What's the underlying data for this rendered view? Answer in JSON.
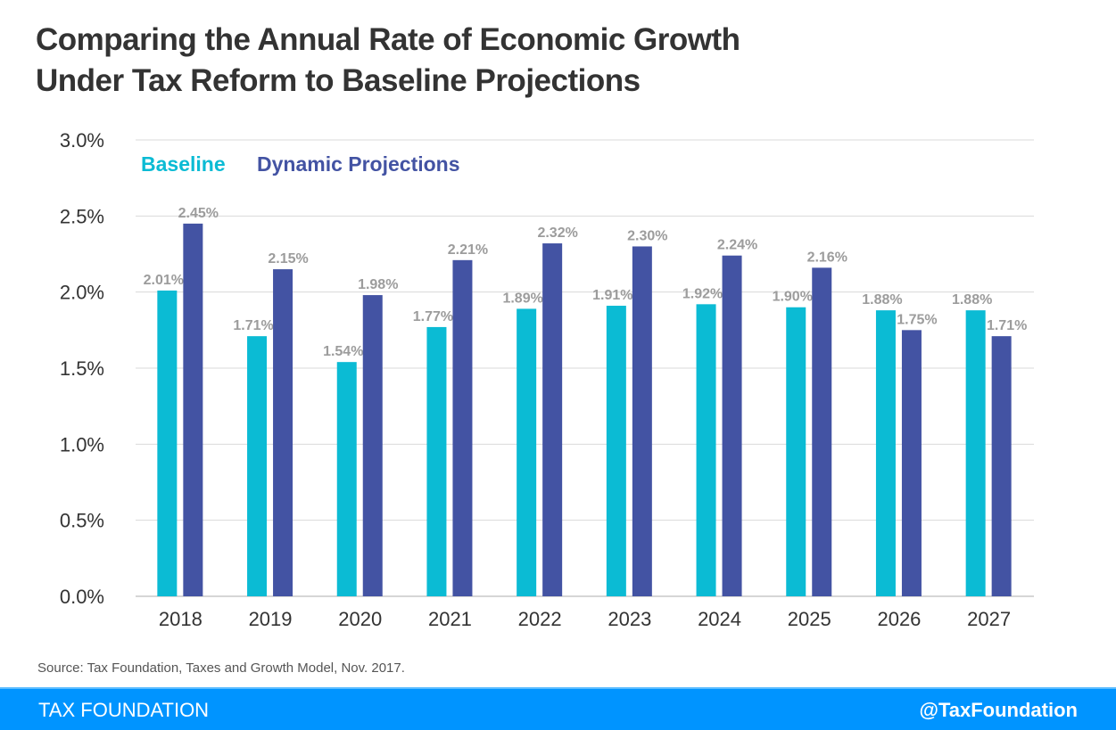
{
  "chart_data": {
    "type": "bar",
    "title": "Comparing the Annual Rate of Economic Growth Under Tax Reform to Baseline Projections",
    "title_lines": [
      "Comparing the Annual Rate of Economic Growth",
      "Under Tax Reform to Baseline Projections"
    ],
    "xlabel": "",
    "ylabel": "",
    "ylim": [
      0,
      3.0
    ],
    "yticks": [
      0,
      0.5,
      1.0,
      1.5,
      2.0,
      2.5,
      3.0
    ],
    "ytick_labels": [
      "0.0%",
      "0.5%",
      "1.0%",
      "1.5%",
      "2.0%",
      "2.5%",
      "3.0%"
    ],
    "grid": true,
    "legend_position": "top-left",
    "categories": [
      "2018",
      "2019",
      "2020",
      "2021",
      "2022",
      "2023",
      "2024",
      "2025",
      "2026",
      "2027"
    ],
    "series": [
      {
        "name": "Baseline",
        "color": "#0BBBD4",
        "values": [
          2.01,
          1.71,
          1.54,
          1.77,
          1.89,
          1.91,
          1.92,
          1.9,
          1.88,
          1.88
        ],
        "labels": [
          "2.01%",
          "1.71%",
          "1.54%",
          "1.77%",
          "1.89%",
          "1.91%",
          "1.92%",
          "1.90%",
          "1.88%",
          "1.88%"
        ]
      },
      {
        "name": "Dynamic Projections",
        "color": "#4353A3",
        "values": [
          2.45,
          2.15,
          1.98,
          2.21,
          2.32,
          2.3,
          2.24,
          2.16,
          1.75,
          1.71
        ],
        "labels": [
          "2.45%",
          "2.15%",
          "1.98%",
          "2.21%",
          "2.32%",
          "2.30%",
          "2.24%",
          "2.16%",
          "1.75%",
          "1.71%"
        ]
      }
    ]
  },
  "source": "Source: Tax Foundation, Taxes and Growth Model, Nov. 2017.",
  "footer": {
    "left": "TAX FOUNDATION",
    "right": "@TaxFoundation"
  }
}
